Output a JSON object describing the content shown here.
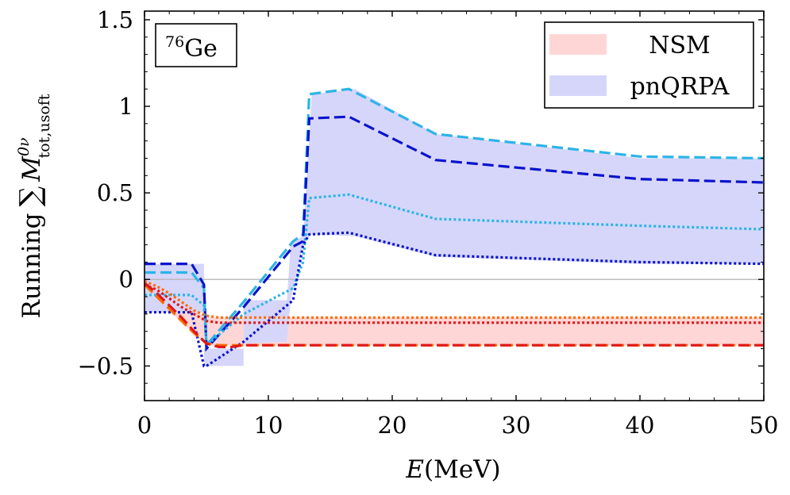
{
  "chart_data": {
    "type": "line",
    "annotation": {
      "mass": "76",
      "symbol": "Ge"
    },
    "xlabel": {
      "italic": "E",
      "rest": "(MeV)"
    },
    "ylabel": {
      "word": "Running",
      "sum": "∑",
      "symbol": "M",
      "sup": "0ν",
      "sub": "tot,usoft"
    },
    "xlim": [
      0,
      50
    ],
    "ylim": [
      -0.7,
      1.55
    ],
    "xticks": [
      0,
      10,
      20,
      30,
      40,
      50
    ],
    "yticks": [
      -0.5,
      0,
      0.5,
      1,
      1.5
    ],
    "ytick_labels": [
      "−0.5",
      "0",
      "0.5",
      "1",
      "1.5"
    ],
    "grid": false,
    "zero_line": true,
    "legend": {
      "position": "top-right",
      "entries": [
        {
          "label": "NSM",
          "color": "#ffd6d6"
        },
        {
          "label": "pnQRPA",
          "color": "#d6d6fb"
        }
      ]
    },
    "bands": [
      {
        "name": "NSM",
        "color": "#ffd6d6",
        "x": [
          0,
          5,
          5.5,
          50
        ],
        "lower": [
          -0.05,
          -0.38,
          -0.38,
          -0.38
        ],
        "upper": [
          -0.02,
          -0.22,
          -0.22,
          -0.22
        ]
      },
      {
        "name": "pnQRPA",
        "color": "#d6d6fb",
        "x": [
          0,
          4.8,
          4.8,
          8,
          8,
          11.5,
          11.8,
          12.8,
          13.5,
          17,
          23.5,
          40,
          50
        ],
        "lower": [
          -0.19,
          -0.19,
          -0.5,
          -0.5,
          -0.37,
          -0.36,
          -0.12,
          0.2,
          0.26,
          0.25,
          0.13,
          0.09,
          0.09
        ],
        "upper": [
          0.09,
          0.09,
          -0.4,
          -0.4,
          -0.12,
          -0.12,
          0.21,
          0.25,
          1.07,
          1.1,
          0.84,
          0.7,
          0.7
        ]
      }
    ],
    "series": [
      {
        "color": "#2cb4e6",
        "style": "dashed",
        "x": [
          0,
          3.8,
          4.8,
          5,
          8,
          12,
          12.8,
          13.3,
          16.5,
          23.5,
          40,
          50
        ],
        "y": [
          0.04,
          0.04,
          -0.05,
          -0.38,
          -0.13,
          0.22,
          0.26,
          1.07,
          1.1,
          0.84,
          0.71,
          0.7
        ]
      },
      {
        "color": "#0a14cc",
        "style": "dashed",
        "x": [
          0,
          3.8,
          4.8,
          5,
          8,
          12,
          12.8,
          13.3,
          16.5,
          23.5,
          40,
          50
        ],
        "y": [
          0.09,
          0.09,
          -0.03,
          -0.4,
          -0.16,
          0.19,
          0.22,
          0.93,
          0.94,
          0.69,
          0.58,
          0.56
        ]
      },
      {
        "color": "#2cb4e6",
        "style": "dotted",
        "x": [
          0,
          3.8,
          4.8,
          5,
          8,
          12,
          12.8,
          13.3,
          16.5,
          23.5,
          40,
          50
        ],
        "y": [
          -0.09,
          -0.09,
          -0.15,
          -0.38,
          -0.2,
          -0.05,
          0.1,
          0.47,
          0.49,
          0.35,
          0.31,
          0.29
        ]
      },
      {
        "color": "#0a14cc",
        "style": "dotted",
        "x": [
          0,
          3.8,
          4.8,
          5,
          8,
          12,
          12.8,
          13.3,
          16.5,
          23.5,
          40,
          50
        ],
        "y": [
          -0.19,
          -0.19,
          -0.5,
          -0.5,
          -0.36,
          -0.12,
          0.2,
          0.26,
          0.27,
          0.14,
          0.1,
          0.09
        ]
      },
      {
        "color": "#ff6a00",
        "style": "dashed",
        "x": [
          0,
          1,
          2,
          3,
          4,
          5,
          6,
          7,
          8,
          10,
          12,
          50
        ],
        "y": [
          -0.03,
          -0.1,
          -0.17,
          -0.24,
          -0.31,
          -0.37,
          -0.38,
          -0.38,
          -0.38,
          -0.38,
          -0.38,
          -0.38
        ]
      },
      {
        "color": "#e01818",
        "style": "dashed",
        "x": [
          0,
          1,
          2,
          3,
          4,
          5,
          6,
          7,
          8,
          10,
          12,
          50
        ],
        "y": [
          -0.02,
          -0.08,
          -0.15,
          -0.22,
          -0.3,
          -0.37,
          -0.39,
          -0.39,
          -0.38,
          -0.38,
          -0.38,
          -0.38
        ]
      },
      {
        "color": "#ff6a00",
        "style": "dotted",
        "x": [
          0,
          1,
          2,
          3,
          4,
          5,
          6,
          7,
          8,
          10,
          12,
          50
        ],
        "y": [
          -0.01,
          -0.04,
          -0.08,
          -0.13,
          -0.18,
          -0.21,
          -0.22,
          -0.22,
          -0.22,
          -0.22,
          -0.22,
          -0.22
        ]
      },
      {
        "color": "#e01818",
        "style": "dotted",
        "x": [
          0,
          1,
          2,
          3,
          4,
          5,
          6,
          7,
          8,
          10,
          12,
          50
        ],
        "y": [
          -0.03,
          -0.06,
          -0.11,
          -0.16,
          -0.2,
          -0.24,
          -0.25,
          -0.25,
          -0.25,
          -0.25,
          -0.25,
          -0.25
        ]
      }
    ]
  }
}
